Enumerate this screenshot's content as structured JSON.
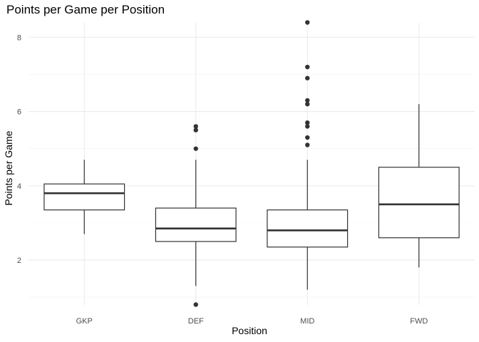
{
  "chart_data": {
    "type": "boxplot",
    "title": "Points per Game per Position",
    "xlabel": "Position",
    "ylabel": "Points per Game",
    "categories": [
      "GKP",
      "DEF",
      "MID",
      "FWD"
    ],
    "ylim": [
      0.8,
      8.4
    ],
    "yticks": [
      2,
      4,
      6,
      8
    ],
    "grid": true,
    "boxes": [
      {
        "category": "GKP",
        "whisker_low": 2.7,
        "q1": 3.35,
        "median": 3.8,
        "q3": 4.05,
        "whisker_high": 4.7,
        "outliers": []
      },
      {
        "category": "DEF",
        "whisker_low": 1.3,
        "q1": 2.5,
        "median": 2.85,
        "q3": 3.4,
        "whisker_high": 4.7,
        "outliers": [
          0.8,
          5.0,
          5.5,
          5.6
        ]
      },
      {
        "category": "MID",
        "whisker_low": 1.2,
        "q1": 2.35,
        "median": 2.8,
        "q3": 3.35,
        "whisker_high": 4.7,
        "outliers": [
          5.1,
          5.3,
          5.6,
          5.7,
          6.2,
          6.3,
          6.9,
          7.2,
          8.4
        ]
      },
      {
        "category": "FWD",
        "whisker_low": 1.8,
        "q1": 2.6,
        "median": 3.5,
        "q3": 4.5,
        "whisker_high": 6.2,
        "outliers": []
      }
    ]
  }
}
